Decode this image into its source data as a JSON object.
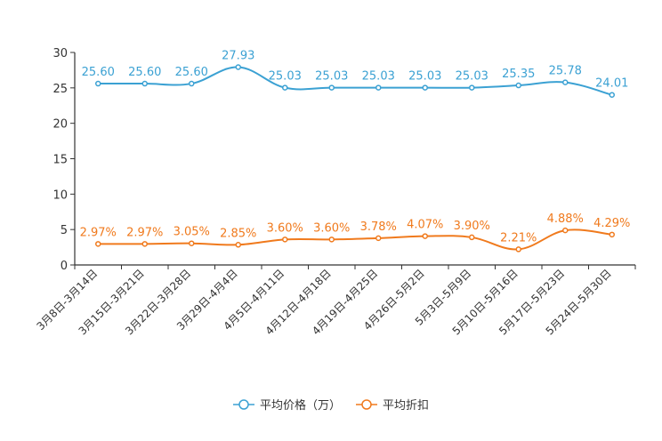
{
  "chart_data": {
    "type": "line",
    "title": "",
    "xlabel": "",
    "ylabel": "",
    "ylim": [
      0,
      30
    ],
    "yticks": [
      "0",
      "5",
      "10",
      "15",
      "20",
      "25",
      "30"
    ],
    "grid": false,
    "legend_position": "bottom-center",
    "categories": [
      "3月8日-3月14日",
      "3月15日-3月21日",
      "3月22日-3月28日",
      "3月29日-4月4日",
      "4月5日-4月11日",
      "4月12日-4月18日",
      "4月19日-4月25日",
      "4月26日-5月2日",
      "5月3日-5月9日",
      "5月10日-5月16日",
      "5月17日-5月23日",
      "5月24日-5月30日"
    ],
    "series": [
      {
        "name": "平均价格（万）",
        "color": "#3ba1d3",
        "values": [
          25.6,
          25.6,
          25.6,
          27.93,
          25.03,
          25.03,
          25.03,
          25.03,
          25.03,
          25.35,
          25.78,
          24.01
        ],
        "labels": [
          "25.60",
          "25.60",
          "25.60",
          "27.93",
          "25.03",
          "25.03",
          "25.03",
          "25.03",
          "25.03",
          "25.35",
          "25.78",
          "24.01"
        ]
      },
      {
        "name": "平均折扣",
        "color": "#f07a1d",
        "values": [
          2.97,
          2.97,
          3.05,
          2.85,
          3.6,
          3.6,
          3.78,
          4.07,
          3.9,
          2.21,
          4.88,
          4.29
        ],
        "labels": [
          "2.97%",
          "2.97%",
          "3.05%",
          "2.85%",
          "3.60%",
          "3.60%",
          "3.78%",
          "4.07%",
          "3.90%",
          "2.21%",
          "4.88%",
          "4.29%"
        ]
      }
    ]
  }
}
